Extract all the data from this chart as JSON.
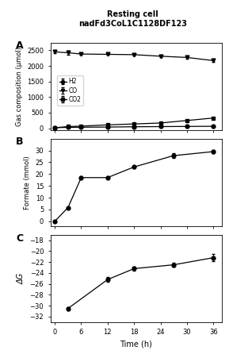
{
  "title_line1": "Resting cell",
  "title_line2": "nadFd3CoL1C1128DF123",
  "time_A": [
    0,
    3,
    6,
    12,
    18,
    24,
    30,
    36
  ],
  "H2": [
    20,
    30,
    35,
    40,
    50,
    55,
    60,
    65
  ],
  "H2_err": [
    3,
    3,
    3,
    3,
    3,
    3,
    3,
    3
  ],
  "CO": [
    2450,
    2420,
    2380,
    2370,
    2360,
    2310,
    2270,
    2170
  ],
  "CO_err": [
    40,
    60,
    30,
    20,
    20,
    30,
    30,
    30
  ],
  "CO2": [
    20,
    55,
    70,
    110,
    140,
    170,
    250,
    330
  ],
  "CO2_err": [
    5,
    5,
    5,
    10,
    10,
    15,
    15,
    20
  ],
  "time_B": [
    0,
    3,
    6,
    12,
    18,
    27,
    36
  ],
  "formate": [
    0,
    5.8,
    18.5,
    18.5,
    23.0,
    27.8,
    29.5
  ],
  "formate_err": [
    0.1,
    0.3,
    0.5,
    0.5,
    0.6,
    1.0,
    0.8
  ],
  "time_C": [
    3,
    12,
    18,
    27,
    36
  ],
  "dG": [
    -30.5,
    -25.2,
    -23.2,
    -22.5,
    -21.2
  ],
  "dG_err": [
    0.3,
    0.4,
    0.4,
    0.4,
    0.7
  ],
  "ylabel_A": "Gas composition (μmol)",
  "ylabel_B": "Formate (mmol)",
  "ylabel_C": "ΔG",
  "xlabel": "Time (h)",
  "ylim_A": [
    -50,
    2750
  ],
  "ylim_B": [
    -2,
    35
  ],
  "ylim_C": [
    -33,
    -17
  ],
  "yticks_A": [
    0,
    500,
    1000,
    1500,
    2000,
    2500
  ],
  "yticks_B": [
    0,
    5,
    10,
    15,
    20,
    25,
    30
  ],
  "yticks_C": [
    -32,
    -30,
    -28,
    -26,
    -24,
    -22,
    -20,
    -18
  ],
  "xticks": [
    0,
    6,
    12,
    18,
    24,
    30,
    36
  ],
  "marker_size": 3.5,
  "line_width": 0.9,
  "cap_size": 1.5
}
